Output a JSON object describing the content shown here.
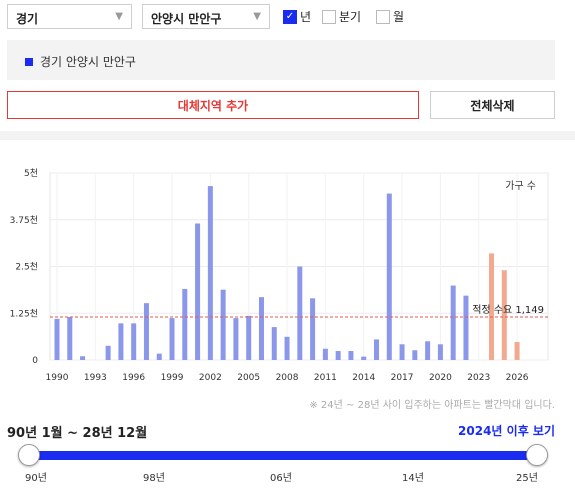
{
  "filters": {
    "province": "경기",
    "district": "안양시 만안구",
    "period_options": [
      {
        "label": "년",
        "checked": true
      },
      {
        "label": "분기",
        "checked": false
      },
      {
        "label": "월",
        "checked": false
      }
    ]
  },
  "selected_region": "경기 안양시 만안구",
  "buttons": {
    "add_region": "대체지역 추가",
    "delete_all": "전체삭제"
  },
  "chart_data": {
    "type": "bar",
    "series_label": "가구 수",
    "y_ticks": [
      "0",
      "1.25천",
      "2.5천",
      "3.75천",
      "5천"
    ],
    "ylim": [
      0,
      5000
    ],
    "x_tick_labels": [
      "1990",
      "1993",
      "1996",
      "1999",
      "2002",
      "2005",
      "2008",
      "2011",
      "2014",
      "2017",
      "2020",
      "2023",
      "2026"
    ],
    "years": [
      1990,
      1991,
      1992,
      1993,
      1994,
      1995,
      1996,
      1997,
      1998,
      1999,
      2000,
      2001,
      2002,
      2003,
      2004,
      2005,
      2006,
      2007,
      2008,
      2009,
      2010,
      2011,
      2012,
      2013,
      2014,
      2015,
      2016,
      2017,
      2018,
      2019,
      2020,
      2021,
      2022,
      2023,
      2024,
      2025,
      2026
    ],
    "values": [
      1100,
      1150,
      100,
      0,
      380,
      980,
      980,
      1520,
      170,
      1120,
      1900,
      3650,
      4650,
      1880,
      1120,
      1180,
      1680,
      880,
      620,
      2500,
      1650,
      300,
      240,
      240,
      90,
      550,
      4450,
      420,
      260,
      500,
      420,
      1990,
      1720,
      0,
      2850,
      2400,
      480
    ],
    "projected_years": [
      2024,
      2025,
      2026
    ],
    "bar_color": "#8b97ea",
    "projected_color": "#f3a98f",
    "reference_line": {
      "label": "적정 수요 1,149",
      "value": 1149,
      "color": "#e05a4f"
    }
  },
  "note": "※ 24년 ~ 28년 사이 입주하는 아파트는 빨간막대 입니다.",
  "range": {
    "label": "90년 1월 ~ 28년 12월",
    "after_link": "2024년 이후 보기",
    "ticks": [
      "90년",
      "98년",
      "06년",
      "14년",
      "25년"
    ]
  }
}
